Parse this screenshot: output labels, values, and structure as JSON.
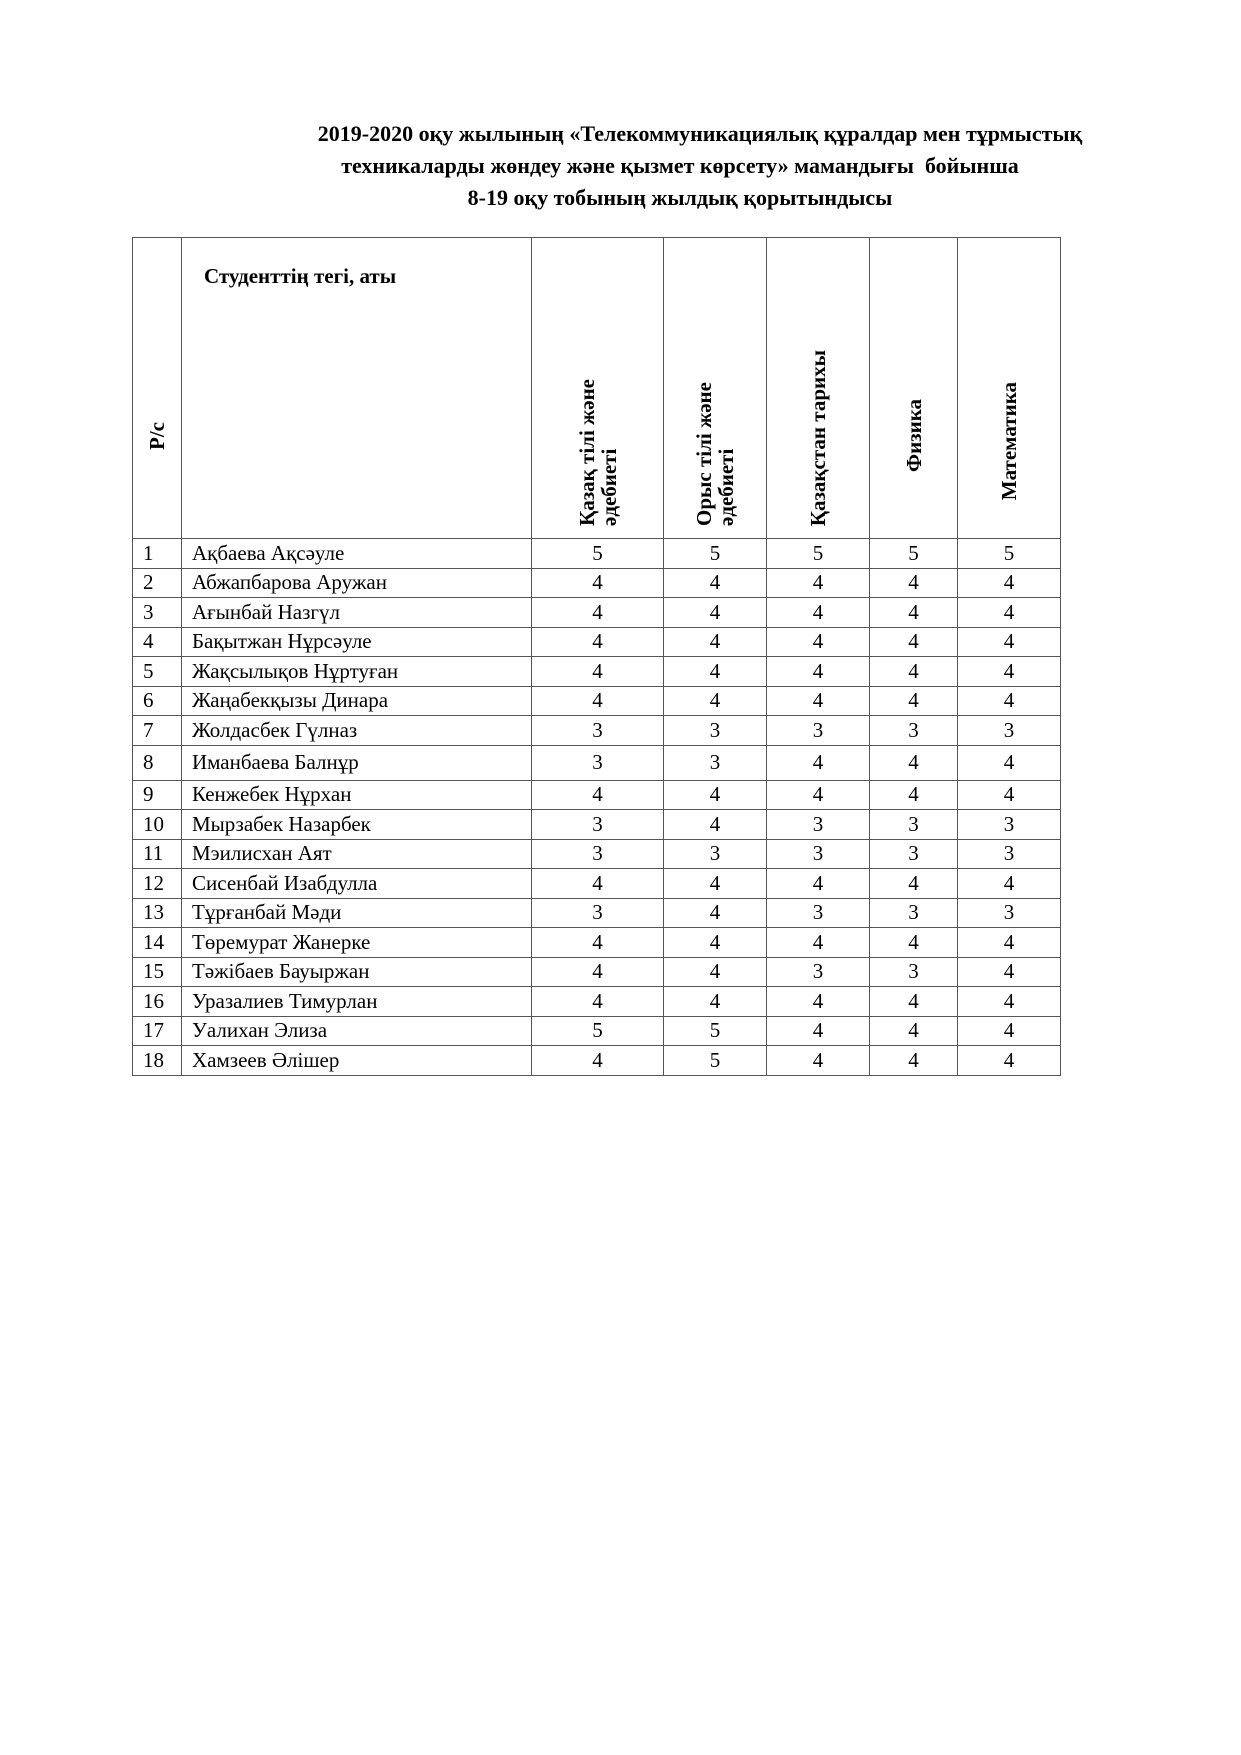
{
  "title": {
    "line1": "2019-2020 оқу жылының «Телекоммуникациялық құралдар мен тұрмыстық",
    "line2": "техникаларды жөндеу және қызмет көрсету» мамандығы  бойынша",
    "line3": "8-19 оқу тобының жылдық қорытындысы"
  },
  "table": {
    "headers": {
      "num": "Р/с",
      "name": "Студенттің тегі, аты",
      "subjects": [
        "Қазақ тілі және әдебиеті",
        "Орыс тілі және әдебиеті",
        "Қазақстан тарихы",
        "Физика",
        "Математика"
      ]
    },
    "rows": [
      {
        "n": "1",
        "name": "Ақбаева Ақсәуле",
        "grades": [
          "5",
          "5",
          "5",
          "5",
          "5"
        ]
      },
      {
        "n": "2",
        "name": "Абжапбарова Аружан",
        "grades": [
          "4",
          "4",
          "4",
          "4",
          "4"
        ]
      },
      {
        "n": "3",
        "name": "Ағынбай Назгүл",
        "grades": [
          "4",
          "4",
          "4",
          "4",
          "4"
        ]
      },
      {
        "n": "4",
        "name": "Бақытжан Нұрсәуле",
        "grades": [
          "4",
          "4",
          "4",
          "4",
          "4"
        ]
      },
      {
        "n": "5",
        "name": "Жақсылықов Нұртуған",
        "grades": [
          "4",
          "4",
          "4",
          "4",
          "4"
        ]
      },
      {
        "n": "6",
        "name": "Жаңабекқызы Динара",
        "grades": [
          "4",
          "4",
          "4",
          "4",
          "4"
        ]
      },
      {
        "n": "7",
        "name": "Жолдасбек Гүлназ",
        "grades": [
          "3",
          "3",
          "3",
          "3",
          "3"
        ]
      },
      {
        "n": "8",
        "name": "Иманбаева Балнұр",
        "grades": [
          "3",
          "3",
          "4",
          "4",
          "4"
        ]
      },
      {
        "n": "9",
        "name": "Кенжебек Нұрхан",
        "grades": [
          "4",
          "4",
          "4",
          "4",
          "4"
        ]
      },
      {
        "n": "10",
        "name": "Мырзабек Назарбек",
        "grades": [
          "3",
          "4",
          "3",
          "3",
          "3"
        ]
      },
      {
        "n": "11",
        "name": "Мэилисхан Аят",
        "grades": [
          "3",
          "3",
          "3",
          "3",
          "3"
        ]
      },
      {
        "n": "12",
        "name": "Сисенбай Изабдулла",
        "grades": [
          "4",
          "4",
          "4",
          "4",
          "4"
        ]
      },
      {
        "n": "13",
        "name": "Тұрғанбай Мәди",
        "grades": [
          "3",
          "4",
          "3",
          "3",
          "3"
        ]
      },
      {
        "n": "14",
        "name": "Төремурат Жанерке",
        "grades": [
          "4",
          "4",
          "4",
          "4",
          "4"
        ]
      },
      {
        "n": "15",
        "name": "Тәжібаев Бауыржан",
        "grades": [
          "4",
          "4",
          "3",
          "3",
          "4"
        ]
      },
      {
        "n": "16",
        "name": "Уразалиев Тимурлан",
        "grades": [
          "4",
          "4",
          "4",
          "4",
          "4"
        ]
      },
      {
        "n": "17",
        "name": "Уалихан Элиза",
        "grades": [
          "5",
          "5",
          "4",
          "4",
          "4"
        ]
      },
      {
        "n": "18",
        "name": "Хамзеев Әлішер",
        "grades": [
          "4",
          "5",
          "4",
          "4",
          "4"
        ]
      }
    ]
  }
}
